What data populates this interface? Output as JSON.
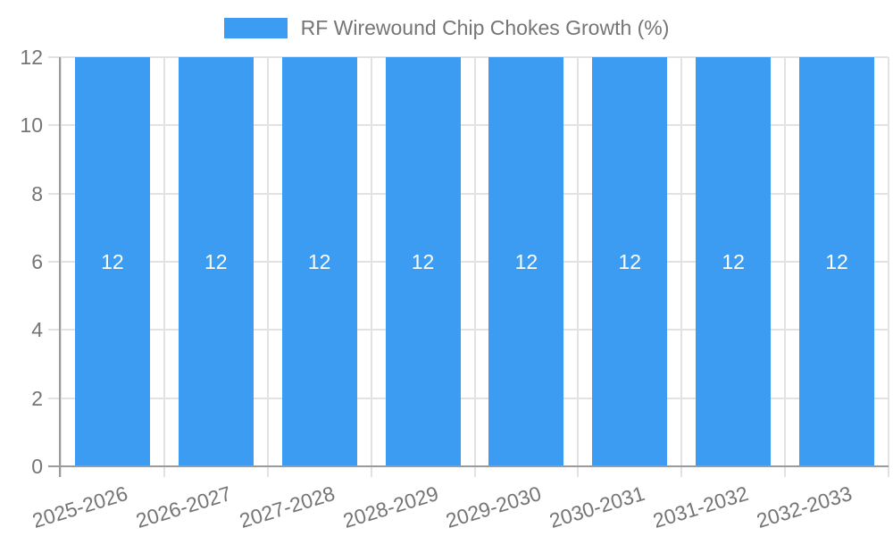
{
  "chart_data": {
    "type": "bar",
    "title": "RF Wirewound Chip Chokes Growth (%)",
    "legend_position": "top",
    "categories": [
      "2025-2026",
      "2026-2027",
      "2027-2028",
      "2028-2029",
      "2029-2030",
      "2030-2031",
      "2031-2032",
      "2032-2033"
    ],
    "series": [
      {
        "name": "RF Wirewound Chip Chokes Growth (%)",
        "values": [
          12,
          12,
          12,
          12,
          12,
          12,
          12,
          12
        ]
      }
    ],
    "bar_value_labels": [
      "12",
      "12",
      "12",
      "12",
      "12",
      "12",
      "12",
      "12"
    ],
    "xlabel": "",
    "ylabel": "",
    "ylim": [
      0,
      12
    ],
    "yticks": [
      0,
      2,
      4,
      6,
      8,
      10,
      12
    ],
    "grid": "on",
    "colors": {
      "bar": "#3B9CF1",
      "bar_label": "#FFFFFF",
      "grid": "#E2E2E2",
      "axis": "#9B9B9B",
      "text": "#757575",
      "background": "#FFFFFF"
    }
  }
}
